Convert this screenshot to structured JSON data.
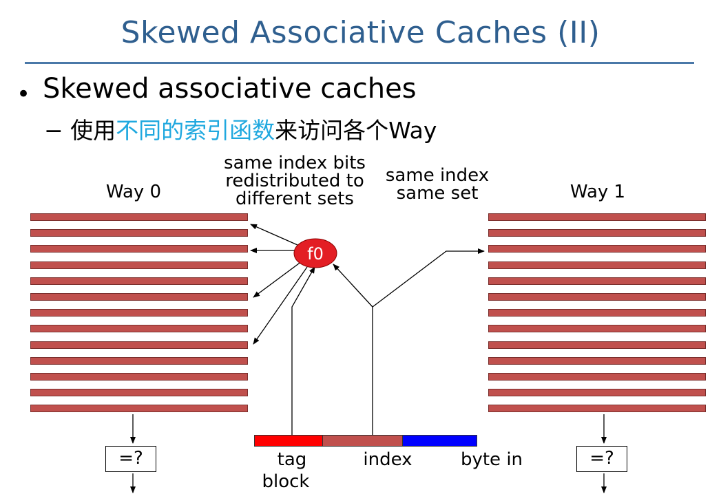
{
  "slide": {
    "title": "Skewed Associative Caches (II)",
    "bullet": "Skewed associative caches",
    "sub": {
      "prefix": "− 使用",
      "highlight": "不同的索引函数",
      "suffix": "来访问各个Way"
    }
  },
  "diagram": {
    "way0_label": "Way 0",
    "way1_label": "Way 1",
    "note_left": [
      "same index bits",
      "redistributed to",
      "different sets"
    ],
    "note_right": [
      "same index",
      "same set"
    ],
    "function_label": "f0",
    "compare_left": "=?",
    "compare_right": "=?",
    "address_fields": {
      "tag": "tag",
      "index": "index",
      "byte": "byte in",
      "block": "block"
    },
    "rows_per_way": 13
  },
  "colors": {
    "title": "#2f5f8f",
    "highlight": "#1fa8df",
    "cache_row": "#c0504d",
    "function_fill": "#e31e24",
    "tag_field": "#ff0000",
    "index_field": "#c0504d",
    "byte_field": "#0000ff"
  }
}
